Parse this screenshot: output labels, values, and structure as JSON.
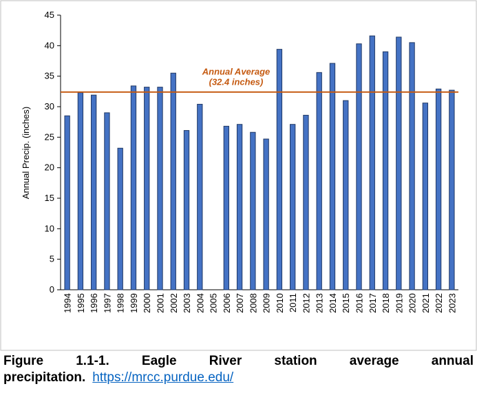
{
  "chart_data": {
    "type": "bar",
    "y_label": "Annual Precip. (inches)",
    "categories": [
      "1994",
      "1995",
      "1996",
      "1997",
      "1998",
      "1999",
      "2000",
      "2001",
      "2002",
      "2003",
      "2004",
      "2005",
      "2006",
      "2007",
      "2008",
      "2009",
      "2010",
      "2011",
      "2012",
      "2013",
      "2014",
      "2015",
      "2016",
      "2017",
      "2018",
      "2019",
      "2020",
      "2021",
      "2022",
      "2023"
    ],
    "values": [
      28.5,
      32.3,
      31.9,
      29.0,
      23.2,
      33.4,
      33.2,
      33.2,
      35.5,
      26.1,
      30.4,
      null,
      26.8,
      27.1,
      25.8,
      24.7,
      39.4,
      27.1,
      28.6,
      35.6,
      37.1,
      31.0,
      40.3,
      41.6,
      39.0,
      41.4,
      40.5,
      30.6,
      32.9,
      32.7
    ],
    "color": "#4472c4",
    "ylim": [
      0,
      45
    ],
    "yticks": [
      0,
      5,
      10,
      15,
      20,
      25,
      30,
      35,
      40,
      45
    ],
    "average": {
      "value": 32.4,
      "color": "#c55a11",
      "label": [
        "Annual Average",
        "(32.4 inches)"
      ]
    }
  },
  "caption": {
    "text": "Figure 1.1-1.  Eagle River station average annual precipitation.",
    "link": "https://mrcc.purdue.edu/"
  }
}
